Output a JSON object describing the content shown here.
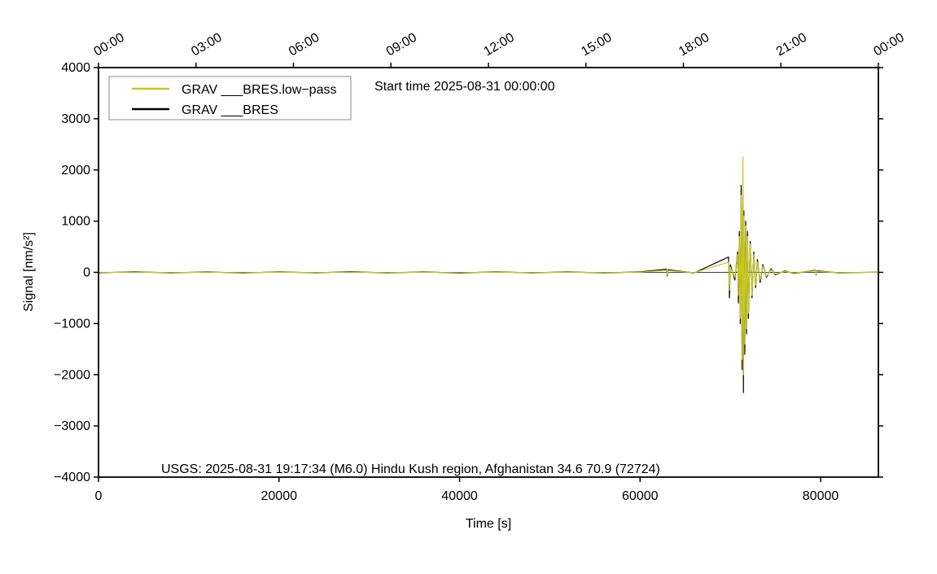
{
  "chart_data": {
    "type": "line",
    "annotations": [
      "Start time 2025-08-31 00:00:00",
      "USGS: 2025-08-31 19:17:34 (M6.0) Hindu Kush region, Afghanistan 34.6 70.9 (72724)"
    ],
    "xlabel": "Time [s]",
    "ylabel": "Signal [nm/s²]",
    "xlim": [
      0,
      86400
    ],
    "xticks": [
      0,
      20000,
      40000,
      60000,
      80000
    ],
    "x2ticks": [
      {
        "value": 0,
        "label": "00:00"
      },
      {
        "value": 10800,
        "label": "03:00"
      },
      {
        "value": 21600,
        "label": "06:00"
      },
      {
        "value": 32400,
        "label": "09:00"
      },
      {
        "value": 43200,
        "label": "12:00"
      },
      {
        "value": 54000,
        "label": "15:00"
      },
      {
        "value": 64800,
        "label": "18:00"
      },
      {
        "value": 75600,
        "label": "21:00"
      },
      {
        "value": 86400,
        "label": "00:00"
      }
    ],
    "ylim": [
      -4000,
      4000
    ],
    "yticks": [
      {
        "value": -4000,
        "label": "−4000"
      },
      {
        "value": -3000,
        "label": "−3000"
      },
      {
        "value": -2000,
        "label": "−2000"
      },
      {
        "value": -1000,
        "label": "−1000"
      },
      0,
      1000,
      2000,
      3000,
      4000
    ],
    "legend": "top-left",
    "x": [
      0,
      4000,
      8000,
      12000,
      16000,
      20000,
      24000,
      28000,
      32000,
      36000,
      40000,
      44000,
      48000,
      52000,
      56000,
      60000,
      62900,
      63000,
      63100,
      66000,
      69800,
      69900,
      70000,
      70500,
      70800,
      70900,
      71000,
      71100,
      71200,
      71300,
      71400,
      71450,
      71500,
      71600,
      71700,
      71800,
      71900,
      72000,
      72200,
      72400,
      72600,
      72800,
      73000,
      73300,
      73600,
      74000,
      74500,
      75000,
      76000,
      77000,
      79400,
      79500,
      79600,
      82000,
      86400
    ],
    "series": [
      {
        "name": "GRAV ___BRES",
        "color": "#000000",
        "values": [
          -10,
          15,
          -12,
          10,
          -15,
          12,
          -10,
          14,
          -12,
          10,
          -14,
          12,
          -10,
          10,
          -12,
          10,
          60,
          -70,
          50,
          -10,
          300,
          -500,
          150,
          -150,
          400,
          -600,
          800,
          -1000,
          1700,
          -1900,
          1500,
          -2350,
          1200,
          -1600,
          1000,
          -1200,
          800,
          -900,
          600,
          -500,
          400,
          -300,
          250,
          -200,
          150,
          -100,
          70,
          -50,
          30,
          -20,
          40,
          -50,
          30,
          -10,
          5
        ]
      },
      {
        "name": "GRAV ___BRES.low−pass",
        "color": "#c8c81e",
        "values": [
          -5,
          8,
          -6,
          5,
          -8,
          6,
          -5,
          7,
          -6,
          5,
          -7,
          6,
          -5,
          5,
          -6,
          5,
          40,
          -50,
          35,
          -5,
          200,
          -350,
          100,
          -100,
          350,
          -450,
          700,
          -900,
          1500,
          -1700,
          2250,
          -2000,
          1100,
          -1400,
          900,
          -1100,
          700,
          -800,
          550,
          -450,
          350,
          -250,
          200,
          -150,
          120,
          -80,
          50,
          -35,
          20,
          -10,
          30,
          -40,
          20,
          -5,
          3
        ]
      }
    ]
  }
}
